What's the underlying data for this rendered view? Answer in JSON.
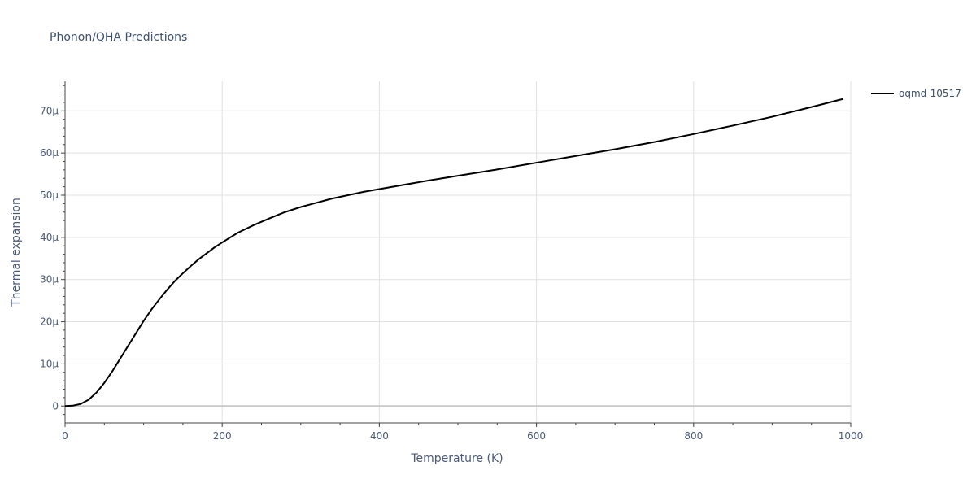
{
  "chart_data": {
    "type": "line",
    "title": "Phonon/QHA Predictions",
    "xlabel": "Temperature (K)",
    "ylabel": "Thermal expansion",
    "xlim": [
      0,
      1000
    ],
    "ylim": [
      -4,
      77
    ],
    "x_ticks": [
      {
        "value": 0,
        "label": "0"
      },
      {
        "value": 200,
        "label": "200"
      },
      {
        "value": 400,
        "label": "400"
      },
      {
        "value": 600,
        "label": "600"
      },
      {
        "value": 800,
        "label": "800"
      },
      {
        "value": 1000,
        "label": "1000"
      }
    ],
    "y_ticks": [
      {
        "value": 0,
        "label": "0"
      },
      {
        "value": 10,
        "label": "10μ"
      },
      {
        "value": 20,
        "label": "20μ"
      },
      {
        "value": 30,
        "label": "30μ"
      },
      {
        "value": 40,
        "label": "40μ"
      },
      {
        "value": 50,
        "label": "50μ"
      },
      {
        "value": 60,
        "label": "60μ"
      },
      {
        "value": 70,
        "label": "70μ"
      }
    ],
    "grid": true,
    "legend_position": "top-right",
    "series": [
      {
        "name": "oqmd-10517",
        "color": "#000000",
        "x": [
          0,
          10,
          20,
          30,
          40,
          50,
          60,
          70,
          80,
          90,
          100,
          110,
          120,
          130,
          140,
          150,
          160,
          170,
          180,
          190,
          200,
          220,
          240,
          260,
          280,
          300,
          340,
          380,
          420,
          460,
          500,
          550,
          600,
          650,
          700,
          750,
          800,
          850,
          900,
          950,
          990
        ],
        "y": [
          0,
          0.1,
          0.5,
          1.5,
          3.2,
          5.5,
          8.2,
          11.2,
          14.2,
          17.2,
          20.2,
          22.9,
          25.3,
          27.6,
          29.7,
          31.5,
          33.2,
          34.8,
          36.2,
          37.6,
          38.8,
          41.1,
          42.9,
          44.5,
          46.0,
          47.2,
          49.2,
          50.8,
          52.1,
          53.4,
          54.6,
          56.1,
          57.7,
          59.3,
          60.9,
          62.6,
          64.5,
          66.5,
          68.6,
          70.9,
          72.8
        ]
      }
    ]
  }
}
